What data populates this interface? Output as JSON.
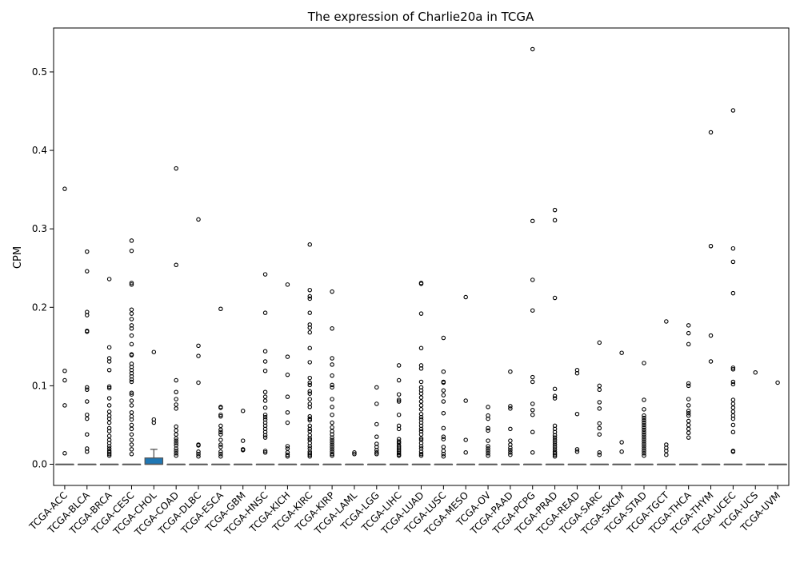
{
  "chart_data": {
    "type": "box",
    "title": "The expression of Charlie20a in TCGA",
    "xlabel": "",
    "ylabel": "CPM",
    "ylim": [
      -0.027,
      0.556
    ],
    "yticks": [
      0.0,
      0.1,
      0.2,
      0.3,
      0.4,
      0.5
    ],
    "ytick_labels": [
      "0.0",
      "0.1",
      "0.2",
      "0.3",
      "0.4",
      "0.5"
    ],
    "grid": false,
    "legend": "none",
    "colors": {
      "box": "#1f77b4",
      "median": "#555555",
      "outlier_edge": "#000000",
      "axis": "#000000"
    },
    "categories": [
      "TCGA-ACC",
      "TCGA-BLCA",
      "TCGA-BRCA",
      "TCGA-CESC",
      "TCGA-CHOL",
      "TCGA-COAD",
      "TCGA-DLBC",
      "TCGA-ESCA",
      "TCGA-GBM",
      "TCGA-HNSC",
      "TCGA-KICH",
      "TCGA-KIRC",
      "TCGA-KIRP",
      "TCGA-LAML",
      "TCGA-LGG",
      "TCGA-LIHC",
      "TCGA-LUAD",
      "TCGA-LUSC",
      "TCGA-MESO",
      "TCGA-OV",
      "TCGA-PAAD",
      "TCGA-PCPG",
      "TCGA-PRAD",
      "TCGA-READ",
      "TCGA-SARC",
      "TCGA-SKCM",
      "TCGA-STAD",
      "TCGA-TGCT",
      "TCGA-THCA",
      "TCGA-THYM",
      "TCGA-UCEC",
      "TCGA-UCS",
      "TCGA-UVM"
    ],
    "boxes": [
      {
        "q1": 0,
        "median": 0,
        "q3": 0,
        "whisker_low": 0,
        "whisker_high": 0,
        "outliers": [
          0.351,
          0.119,
          0.107,
          0.075,
          0.014
        ]
      },
      {
        "q1": 0,
        "median": 0,
        "q3": 0,
        "whisker_low": 0,
        "whisker_high": 0,
        "outliers": [
          0.271,
          0.246,
          0.194,
          0.19,
          0.17,
          0.169,
          0.098,
          0.095,
          0.08,
          0.063,
          0.058,
          0.038,
          0.02,
          0.016
        ]
      },
      {
        "q1": 0,
        "median": 0,
        "q3": 0,
        "whisker_low": 0,
        "whisker_high": 0,
        "outliers": [
          0.236,
          0.149,
          0.135,
          0.131,
          0.12,
          0.099,
          0.097,
          0.084,
          0.075,
          0.067,
          0.062,
          0.058,
          0.053,
          0.046,
          0.042,
          0.036,
          0.031,
          0.027,
          0.023,
          0.02,
          0.017,
          0.015,
          0.013,
          0.011
        ]
      },
      {
        "q1": 0,
        "median": 0,
        "q3": 0,
        "whisker_low": 0,
        "whisker_high": 0,
        "outliers": [
          0.285,
          0.272,
          0.231,
          0.229,
          0.197,
          0.192,
          0.185,
          0.177,
          0.173,
          0.164,
          0.153,
          0.14,
          0.139,
          0.128,
          0.124,
          0.12,
          0.116,
          0.112,
          0.108,
          0.105,
          0.091,
          0.089,
          0.081,
          0.075,
          0.066,
          0.061,
          0.057,
          0.05,
          0.045,
          0.038,
          0.031,
          0.025,
          0.019,
          0.013
        ]
      },
      {
        "q1": 0,
        "median": 0,
        "q3": 0.008,
        "whisker_low": 0,
        "whisker_high": 0.019,
        "outliers": [
          0.143,
          0.057,
          0.053
        ]
      },
      {
        "q1": 0,
        "median": 0,
        "q3": 0,
        "whisker_low": 0,
        "whisker_high": 0,
        "outliers": [
          0.377,
          0.254,
          0.107,
          0.092,
          0.083,
          0.076,
          0.071,
          0.048,
          0.043,
          0.038,
          0.033,
          0.03,
          0.027,
          0.024,
          0.02,
          0.017,
          0.014,
          0.011
        ]
      },
      {
        "q1": 0,
        "median": 0,
        "q3": 0,
        "whisker_low": 0,
        "whisker_high": 0,
        "outliers": [
          0.312,
          0.151,
          0.138,
          0.104,
          0.025,
          0.024,
          0.016,
          0.013,
          0.01
        ]
      },
      {
        "q1": 0,
        "median": 0,
        "q3": 0,
        "whisker_low": 0,
        "whisker_high": 0,
        "outliers": [
          0.198,
          0.073,
          0.072,
          0.063,
          0.061,
          0.049,
          0.044,
          0.041,
          0.038,
          0.031,
          0.025,
          0.022,
          0.016,
          0.013,
          0.01
        ]
      },
      {
        "q1": 0,
        "median": 0,
        "q3": 0,
        "whisker_low": 0,
        "whisker_high": 0,
        "outliers": [
          0.068,
          0.03,
          0.019,
          0.018
        ]
      },
      {
        "q1": 0,
        "median": 0,
        "q3": 0,
        "whisker_low": 0,
        "whisker_high": 0,
        "outliers": [
          0.242,
          0.193,
          0.144,
          0.131,
          0.119,
          0.092,
          0.086,
          0.081,
          0.072,
          0.063,
          0.06,
          0.057,
          0.053,
          0.049,
          0.045,
          0.041,
          0.037,
          0.034,
          0.017,
          0.015
        ]
      },
      {
        "q1": 0,
        "median": 0,
        "q3": 0,
        "whisker_low": 0,
        "whisker_high": 0,
        "outliers": [
          0.229,
          0.137,
          0.114,
          0.086,
          0.066,
          0.053,
          0.023,
          0.02,
          0.015,
          0.012,
          0.01
        ]
      },
      {
        "q1": 0,
        "median": 0,
        "q3": 0,
        "whisker_low": 0,
        "whisker_high": 0,
        "outliers": [
          0.28,
          0.222,
          0.214,
          0.211,
          0.193,
          0.178,
          0.174,
          0.168,
          0.148,
          0.13,
          0.11,
          0.104,
          0.101,
          0.093,
          0.09,
          0.083,
          0.077,
          0.073,
          0.061,
          0.058,
          0.056,
          0.049,
          0.045,
          0.042,
          0.037,
          0.033,
          0.031,
          0.027,
          0.023,
          0.02,
          0.016,
          0.014,
          0.012,
          0.01
        ]
      },
      {
        "q1": 0,
        "median": 0,
        "q3": 0,
        "whisker_low": 0,
        "whisker_high": 0,
        "outliers": [
          0.22,
          0.173,
          0.135,
          0.127,
          0.113,
          0.101,
          0.098,
          0.083,
          0.073,
          0.063,
          0.053,
          0.047,
          0.042,
          0.038,
          0.034,
          0.031,
          0.028,
          0.025,
          0.022,
          0.019,
          0.016,
          0.013,
          0.011
        ]
      },
      {
        "q1": 0,
        "median": 0,
        "q3": 0,
        "whisker_low": 0,
        "whisker_high": 0,
        "outliers": [
          0.015,
          0.013
        ]
      },
      {
        "q1": 0,
        "median": 0,
        "q3": 0,
        "whisker_low": 0,
        "whisker_high": 0,
        "outliers": [
          0.098,
          0.077,
          0.051,
          0.035,
          0.026,
          0.022,
          0.018,
          0.015,
          0.013
        ]
      },
      {
        "q1": 0,
        "median": 0,
        "q3": 0,
        "whisker_low": 0,
        "whisker_high": 0,
        "outliers": [
          0.126,
          0.107,
          0.089,
          0.082,
          0.08,
          0.063,
          0.049,
          0.045,
          0.032,
          0.029,
          0.027,
          0.024,
          0.022,
          0.02,
          0.018,
          0.016,
          0.014,
          0.012,
          0.011
        ]
      },
      {
        "q1": 0,
        "median": 0,
        "q3": 0,
        "whisker_low": 0,
        "whisker_high": 0,
        "outliers": [
          0.231,
          0.23,
          0.192,
          0.148,
          0.126,
          0.122,
          0.105,
          0.098,
          0.094,
          0.09,
          0.085,
          0.08,
          0.075,
          0.07,
          0.064,
          0.06,
          0.057,
          0.053,
          0.049,
          0.045,
          0.042,
          0.038,
          0.033,
          0.031,
          0.027,
          0.023,
          0.02,
          0.016,
          0.013,
          0.011
        ]
      },
      {
        "q1": 0,
        "median": 0,
        "q3": 0,
        "whisker_low": 0,
        "whisker_high": 0,
        "outliers": [
          0.161,
          0.118,
          0.105,
          0.104,
          0.094,
          0.088,
          0.08,
          0.065,
          0.046,
          0.035,
          0.032,
          0.022,
          0.017,
          0.013,
          0.01
        ]
      },
      {
        "q1": 0,
        "median": 0,
        "q3": 0,
        "whisker_low": 0,
        "whisker_high": 0,
        "outliers": [
          0.213,
          0.081,
          0.031,
          0.015
        ]
      },
      {
        "q1": 0,
        "median": 0,
        "q3": 0,
        "whisker_low": 0,
        "whisker_high": 0,
        "outliers": [
          0.073,
          0.062,
          0.058,
          0.046,
          0.043,
          0.03,
          0.023,
          0.02,
          0.017,
          0.014,
          0.011
        ]
      },
      {
        "q1": 0,
        "median": 0,
        "q3": 0,
        "whisker_low": 0,
        "whisker_high": 0,
        "outliers": [
          0.118,
          0.074,
          0.071,
          0.045,
          0.03,
          0.025,
          0.021,
          0.018,
          0.015,
          0.012
        ]
      },
      {
        "q1": 0,
        "median": 0,
        "q3": 0,
        "whisker_low": 0,
        "whisker_high": 0,
        "outliers": [
          0.529,
          0.31,
          0.235,
          0.196,
          0.111,
          0.105,
          0.077,
          0.069,
          0.063,
          0.041,
          0.015
        ]
      },
      {
        "q1": 0,
        "median": 0,
        "q3": 0,
        "whisker_low": 0,
        "whisker_high": 0,
        "outliers": [
          0.324,
          0.311,
          0.212,
          0.096,
          0.087,
          0.084,
          0.049,
          0.045,
          0.041,
          0.037,
          0.034,
          0.031,
          0.028,
          0.025,
          0.022,
          0.019,
          0.016,
          0.014,
          0.012,
          0.01
        ]
      },
      {
        "q1": 0,
        "median": 0,
        "q3": 0,
        "whisker_low": 0,
        "whisker_high": 0,
        "outliers": [
          0.12,
          0.116,
          0.064,
          0.019,
          0.016
        ]
      },
      {
        "q1": 0,
        "median": 0,
        "q3": 0,
        "whisker_low": 0,
        "whisker_high": 0,
        "outliers": [
          0.155,
          0.1,
          0.095,
          0.079,
          0.071,
          0.052,
          0.046,
          0.038,
          0.015,
          0.012
        ]
      },
      {
        "q1": 0,
        "median": 0,
        "q3": 0,
        "whisker_low": 0,
        "whisker_high": 0,
        "outliers": [
          0.142,
          0.028,
          0.016
        ]
      },
      {
        "q1": 0,
        "median": 0,
        "q3": 0,
        "whisker_low": 0,
        "whisker_high": 0,
        "outliers": [
          0.129,
          0.082,
          0.07,
          0.062,
          0.059,
          0.056,
          0.053,
          0.05,
          0.047,
          0.044,
          0.041,
          0.038,
          0.035,
          0.032,
          0.029,
          0.026,
          0.023,
          0.02,
          0.017,
          0.014,
          0.011
        ]
      },
      {
        "q1": 0,
        "median": 0,
        "q3": 0,
        "whisker_low": 0,
        "whisker_high": 0,
        "outliers": [
          0.182,
          0.025,
          0.021,
          0.017,
          0.012
        ]
      },
      {
        "q1": 0,
        "median": 0,
        "q3": 0,
        "whisker_low": 0,
        "whisker_high": 0,
        "outliers": [
          0.177,
          0.167,
          0.153,
          0.103,
          0.1,
          0.083,
          0.075,
          0.068,
          0.065,
          0.062,
          0.055,
          0.05,
          0.045,
          0.04,
          0.034
        ]
      },
      {
        "q1": 0,
        "median": 0,
        "q3": 0,
        "whisker_low": 0,
        "whisker_high": 0,
        "outliers": [
          0.423,
          0.278,
          0.164,
          0.131
        ]
      },
      {
        "q1": 0,
        "median": 0,
        "q3": 0,
        "whisker_low": 0,
        "whisker_high": 0,
        "outliers": [
          0.451,
          0.275,
          0.258,
          0.218,
          0.123,
          0.121,
          0.105,
          0.102,
          0.082,
          0.077,
          0.072,
          0.067,
          0.062,
          0.058,
          0.05,
          0.041,
          0.017,
          0.016
        ]
      },
      {
        "q1": 0,
        "median": 0,
        "q3": 0,
        "whisker_low": 0,
        "whisker_high": 0,
        "outliers": [
          0.117
        ]
      },
      {
        "q1": 0,
        "median": 0,
        "q3": 0,
        "whisker_low": 0,
        "whisker_high": 0,
        "outliers": [
          0.104
        ]
      }
    ]
  }
}
